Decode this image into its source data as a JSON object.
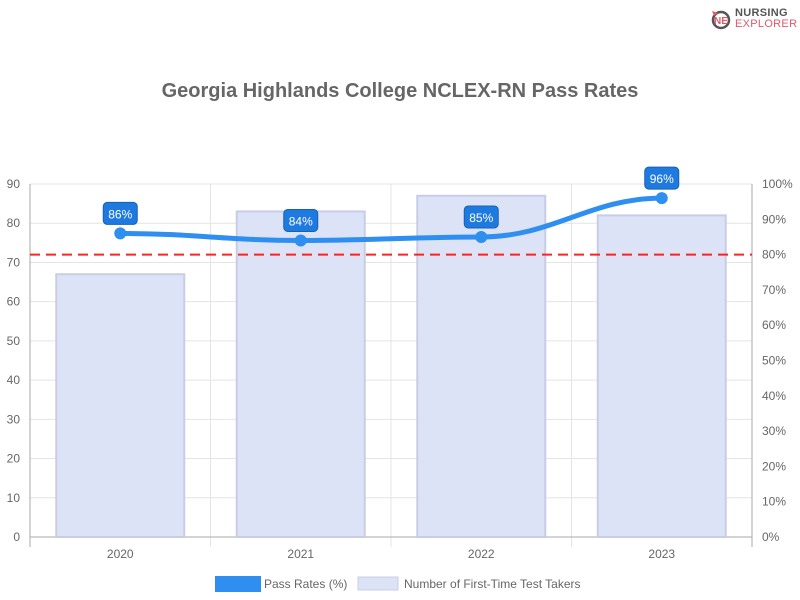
{
  "logo": {
    "line1": "NURSING",
    "line2": "EXPLORER"
  },
  "chart_data": {
    "type": "bar",
    "title": "Georgia Highlands College NCLEX-RN Pass Rates",
    "categories": [
      "2020",
      "2021",
      "2022",
      "2023"
    ],
    "series": [
      {
        "name": "Pass Rates (%)",
        "type": "line",
        "axis": "right",
        "values": [
          86,
          84,
          85,
          96
        ],
        "labels": [
          "86%",
          "84%",
          "85%",
          "96%"
        ],
        "color": "#2f8ff0"
      },
      {
        "name": "Number of First-Time Test Takers",
        "type": "bar",
        "axis": "left",
        "values": [
          67,
          83,
          87,
          82
        ],
        "color": "#dce3f7"
      }
    ],
    "left_axis": {
      "range": [
        0,
        90
      ],
      "ticks": [
        "0",
        "10",
        "20",
        "30",
        "40",
        "50",
        "60",
        "70",
        "80",
        "90"
      ]
    },
    "right_axis": {
      "range": [
        0,
        100
      ],
      "ticks": [
        "0%",
        "10%",
        "20%",
        "30%",
        "40%",
        "50%",
        "60%",
        "70%",
        "80%",
        "90%",
        "100%"
      ]
    },
    "reference_line": {
      "value": 80,
      "axis": "right",
      "color": "#ff2020",
      "style": "dashed"
    },
    "grid": true,
    "legend": "bottom"
  }
}
